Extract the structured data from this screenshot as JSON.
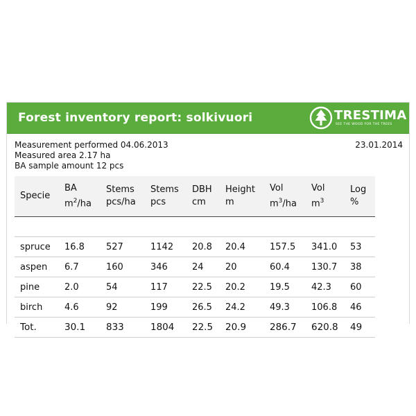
{
  "header": {
    "title": "Forest inventory report: solkivuori",
    "logo_text": "TRESTIMA",
    "logo_tagline": "SEE THE WOOD FOR THE TREES"
  },
  "meta": {
    "measurement": "Measurement performed 04.06.2013",
    "area": "Measured area 2.17 ha",
    "ba_samples": "BA sample amount 12 pcs",
    "date": "23.01.2014"
  },
  "columns": [
    {
      "line1": "Specie",
      "line2": "",
      "sup": "",
      "line2_suffix": ""
    },
    {
      "line1": "BA",
      "line2": "m",
      "sup": "2",
      "line2_suffix": "/ha"
    },
    {
      "line1": "Stems",
      "line2": "pcs/ha",
      "sup": "",
      "line2_suffix": ""
    },
    {
      "line1": "Stems",
      "line2": "pcs",
      "sup": "",
      "line2_suffix": ""
    },
    {
      "line1": "DBH",
      "line2": "cm",
      "sup": "",
      "line2_suffix": ""
    },
    {
      "line1": "Height",
      "line2": "m",
      "sup": "",
      "line2_suffix": ""
    },
    {
      "line1": "Vol",
      "line2": "m",
      "sup": "3",
      "line2_suffix": "/ha"
    },
    {
      "line1": "Vol",
      "line2": "m",
      "sup": "3",
      "line2_suffix": ""
    },
    {
      "line1": "Log",
      "line2": "%",
      "sup": "",
      "line2_suffix": ""
    }
  ],
  "rows": [
    [
      "spruce",
      "16.8",
      "527",
      "1142",
      "20.8",
      "20.4",
      "157.5",
      "341.0",
      "53"
    ],
    [
      "aspen",
      "6.7",
      "160",
      "346",
      "24",
      "20",
      "60.4",
      "130.7",
      "38"
    ],
    [
      "pine",
      "2.0",
      "54",
      "117",
      "22.5",
      "20.2",
      "19.5",
      "42.3",
      "60"
    ],
    [
      "birch",
      "4.6",
      "92",
      "199",
      "26.5",
      "24.2",
      "49.3",
      "106.8",
      "46"
    ]
  ],
  "total": [
    "Tot.",
    "30.1",
    "833",
    "1804",
    "22.5",
    "20.9",
    "286.7",
    "620.8",
    "49"
  ],
  "colors": {
    "header_green": "#5aad3c",
    "text": "#111111"
  }
}
